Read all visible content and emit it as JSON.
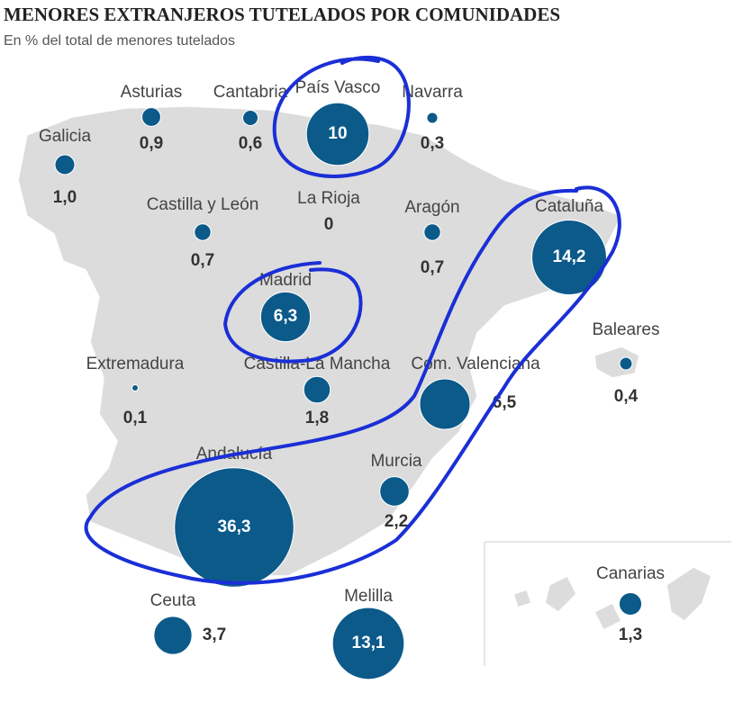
{
  "chart_data": {
    "type": "bubble-map",
    "title": "MENORES EXTRANJEROS TUTELADOS POR COMUNIDADES",
    "subtitle": "En % del total de menores tutelados",
    "categories": [
      "Galicia",
      "Asturias",
      "Cantabria",
      "País Vasco",
      "Navarra",
      "Castilla y León",
      "La Rioja",
      "Aragón",
      "Cataluña",
      "Madrid",
      "Extremadura",
      "Castilla-La Mancha",
      "Baleares",
      "Com. Valenciana",
      "Murcia",
      "Andalucía",
      "Ceuta",
      "Melilla",
      "Canarias"
    ],
    "values": [
      1.0,
      0.9,
      0.6,
      10,
      0.3,
      0.7,
      0,
      0.7,
      14.2,
      6.3,
      0.1,
      1.8,
      0.4,
      6.5,
      2.2,
      36.3,
      3.7,
      13.1,
      1.3
    ],
    "value_labels": [
      "1,0",
      "0,9",
      "0,6",
      "10",
      "0,3",
      "0,7",
      "0",
      "0,7",
      "14,2",
      "6,3",
      "0,1",
      "1,8",
      "0,4",
      "6,5",
      "2,2",
      "36,3",
      "3,7",
      "13,1",
      "1,3"
    ],
    "color": "#0b5a8a"
  }
}
